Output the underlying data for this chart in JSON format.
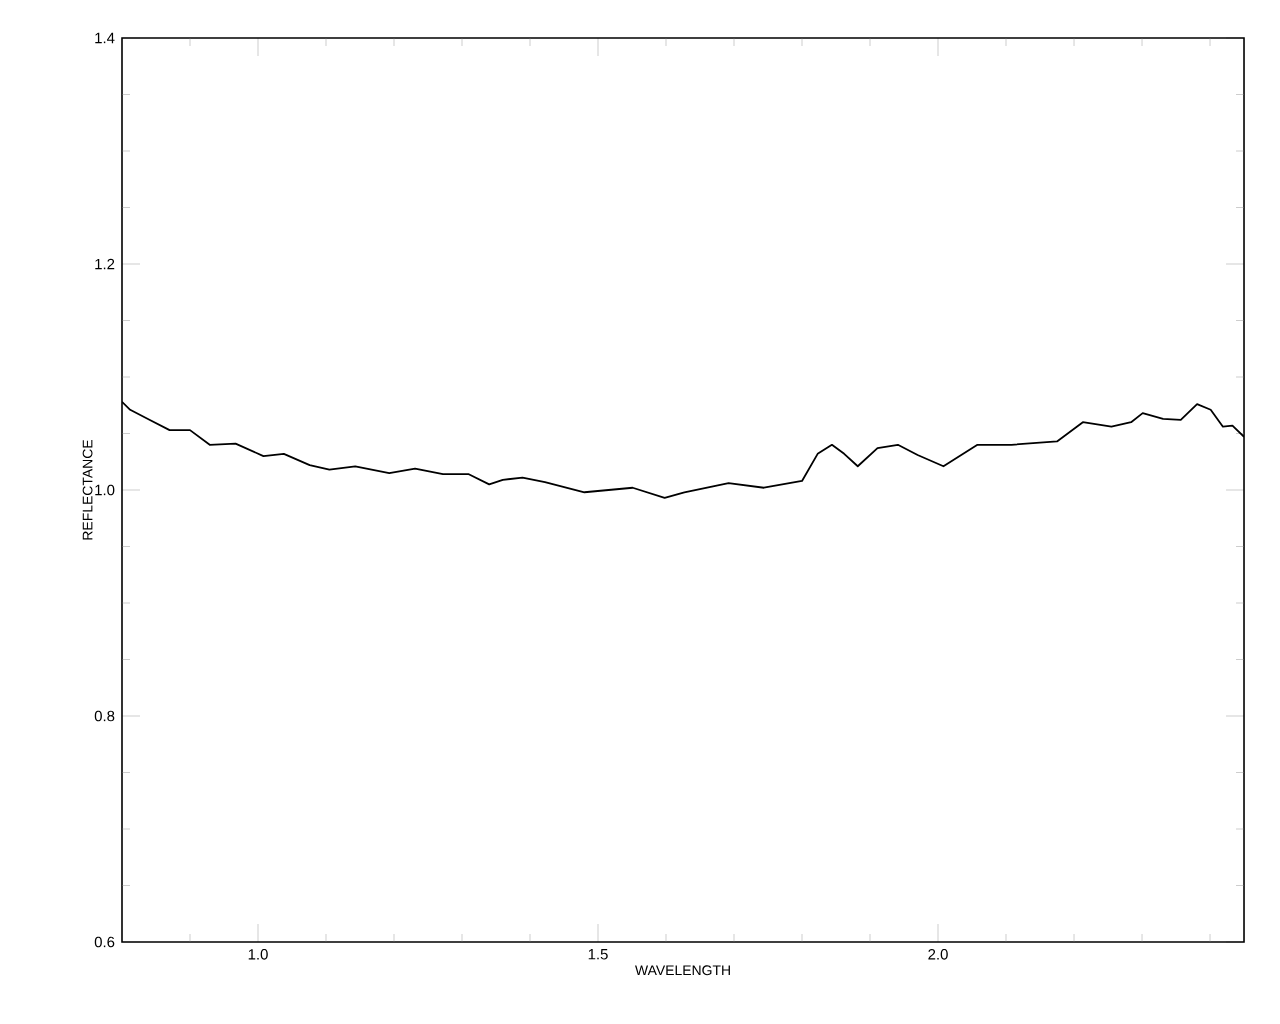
{
  "chart_data": {
    "type": "line",
    "xlabel": "WAVELENGTH",
    "ylabel": "REFLECTANCE",
    "xlim": [
      0.8,
      2.45
    ],
    "ylim": [
      0.6,
      1.4
    ],
    "xticks": [
      {
        "value": 0.9,
        "label": null
      },
      {
        "value": 1.0,
        "label": "1.0"
      },
      {
        "value": 1.1,
        "label": null
      },
      {
        "value": 1.2,
        "label": null
      },
      {
        "value": 1.3,
        "label": null
      },
      {
        "value": 1.4,
        "label": null
      },
      {
        "value": 1.5,
        "label": "1.5"
      },
      {
        "value": 1.6,
        "label": null
      },
      {
        "value": 1.7,
        "label": null
      },
      {
        "value": 1.8,
        "label": null
      },
      {
        "value": 1.9,
        "label": null
      },
      {
        "value": 2.0,
        "label": "2.0"
      },
      {
        "value": 2.1,
        "label": null
      },
      {
        "value": 2.2,
        "label": null
      },
      {
        "value": 2.3,
        "label": null
      },
      {
        "value": 2.4,
        "label": null
      }
    ],
    "yticks": [
      {
        "value": 0.6,
        "label": "0.6"
      },
      {
        "value": 0.65,
        "label": null
      },
      {
        "value": 0.7,
        "label": null
      },
      {
        "value": 0.75,
        "label": null
      },
      {
        "value": 0.8,
        "label": "0.8"
      },
      {
        "value": 0.85,
        "label": null
      },
      {
        "value": 0.9,
        "label": null
      },
      {
        "value": 0.95,
        "label": null
      },
      {
        "value": 1.0,
        "label": "1.0"
      },
      {
        "value": 1.05,
        "label": null
      },
      {
        "value": 1.1,
        "label": null
      },
      {
        "value": 1.15,
        "label": null
      },
      {
        "value": 1.2,
        "label": "1.2"
      },
      {
        "value": 1.25,
        "label": null
      },
      {
        "value": 1.3,
        "label": null
      },
      {
        "value": 1.35,
        "label": null
      },
      {
        "value": 1.4,
        "label": "1.4"
      }
    ],
    "x": [
      0.8,
      0.812,
      0.841,
      0.87,
      0.9,
      0.929,
      0.967,
      1.008,
      1.038,
      1.076,
      1.105,
      1.143,
      1.193,
      1.231,
      1.272,
      1.31,
      1.34,
      1.36,
      1.389,
      1.422,
      1.48,
      1.551,
      1.598,
      1.627,
      1.692,
      1.744,
      1.8,
      1.823,
      1.844,
      1.862,
      1.882,
      1.911,
      1.941,
      1.97,
      2.008,
      2.058,
      2.108,
      2.175,
      2.213,
      2.255,
      2.284,
      2.301,
      2.331,
      2.357,
      2.381,
      2.401,
      2.419,
      2.433,
      2.45
    ],
    "series": [
      {
        "color": "#000000",
        "values": [
          1.078,
          1.071,
          1.062,
          1.053,
          1.053,
          1.04,
          1.041,
          1.03,
          1.032,
          1.022,
          1.018,
          1.021,
          1.015,
          1.019,
          1.014,
          1.014,
          1.005,
          1.009,
          1.011,
          1.007,
          0.998,
          1.002,
          0.993,
          0.998,
          1.006,
          1.002,
          1.008,
          1.032,
          1.04,
          1.032,
          1.021,
          1.037,
          1.04,
          1.031,
          1.021,
          1.04,
          1.04,
          1.043,
          1.06,
          1.056,
          1.06,
          1.068,
          1.063,
          1.062,
          1.076,
          1.071,
          1.056,
          1.057,
          1.047
        ]
      }
    ]
  }
}
